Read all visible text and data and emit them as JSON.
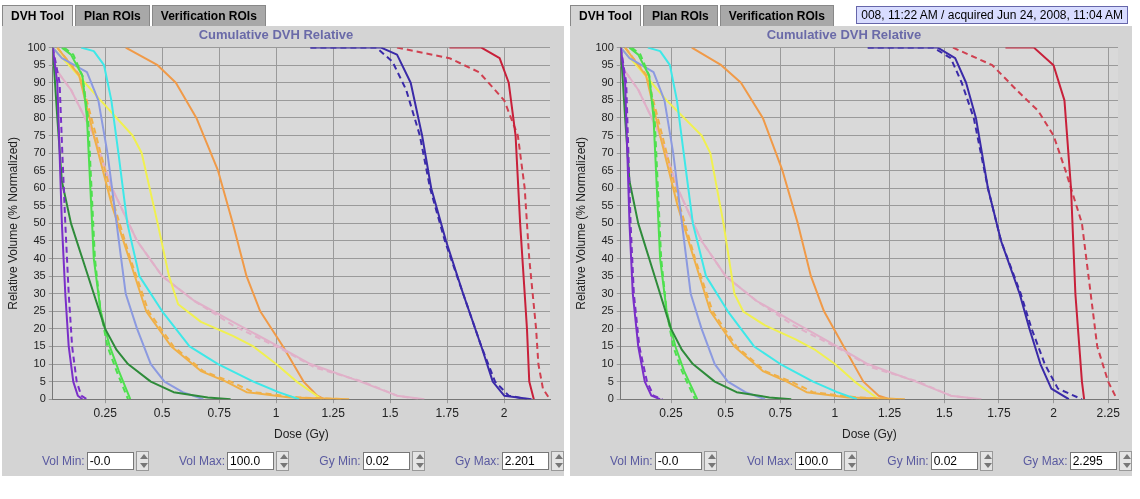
{
  "chart_data": [
    {
      "type": "line",
      "title": "Cumulative DVH Relative",
      "xlabel": "Dose (Gy)",
      "ylabel": "Relative Volume (% Normalized)",
      "xlim": [
        0.02,
        2.201
      ],
      "xticks": [
        0.25,
        0.5,
        0.75,
        1,
        1.25,
        1.5,
        1.75,
        2
      ],
      "ylim": [
        0,
        100
      ],
      "yticks": [
        0,
        5,
        10,
        15,
        20,
        25,
        30,
        35,
        40,
        45,
        50,
        55,
        60,
        65,
        70,
        75,
        80,
        85,
        90,
        95,
        100
      ],
      "grid": true,
      "legend": false,
      "marker": "none",
      "line_style": "solid",
      "annotations": [
        "DVH Tool",
        "Plan ROIs",
        "Verification ROIs",
        "Vol Min:",
        "-0.0",
        "Vol Max:",
        "100.0",
        "Gy Min:",
        "0.02",
        "Gy Max:",
        "2.201"
      ],
      "series": [
        {
          "color": "#7a2fc8",
          "x": [
            0.02,
            0.04,
            0.05,
            0.06,
            0.075,
            0.09,
            0.11,
            0.13,
            0.15
          ],
          "values": [
            100,
            90,
            70,
            50,
            30,
            15,
            5,
            1,
            0
          ]
        },
        {
          "color": "#7a2fc8",
          "line_style": "dashed",
          "x": [
            0.02,
            0.05,
            0.062,
            0.075,
            0.09,
            0.105,
            0.125,
            0.145,
            0.17
          ],
          "values": [
            100,
            90,
            70,
            50,
            30,
            15,
            5,
            1,
            0
          ]
        },
        {
          "color": "#2e8b3a",
          "x": [
            0.02,
            0.04,
            0.06,
            0.1,
            0.15,
            0.2,
            0.25,
            0.3,
            0.35,
            0.45,
            0.55,
            0.7,
            0.8
          ],
          "values": [
            100,
            80,
            62,
            50,
            40,
            30,
            20,
            14,
            10,
            5,
            2,
            0.5,
            0
          ]
        },
        {
          "color": "#4ee04e",
          "x": [
            0.06,
            0.1,
            0.15,
            0.17,
            0.185,
            0.2,
            0.23,
            0.27,
            0.31,
            0.36
          ],
          "values": [
            100,
            98,
            92,
            80,
            60,
            40,
            25,
            15,
            8,
            0
          ]
        },
        {
          "color": "#4ee04e",
          "line_style": "dashed",
          "x": [
            0.07,
            0.11,
            0.15,
            0.175,
            0.19,
            0.205,
            0.23,
            0.26,
            0.3,
            0.35
          ],
          "values": [
            100,
            98,
            92,
            80,
            60,
            40,
            25,
            15,
            8,
            0
          ]
        },
        {
          "color": "#8c9ae0",
          "x": [
            0.02,
            0.06,
            0.17,
            0.22,
            0.26,
            0.3,
            0.34,
            0.39,
            0.45,
            0.51,
            0.59,
            0.68
          ],
          "values": [
            100,
            97,
            93,
            85,
            70,
            50,
            30,
            20,
            10,
            5,
            2,
            0
          ]
        },
        {
          "color": "#3ee8e8",
          "x": [
            0.144,
            0.2,
            0.245,
            0.277,
            0.308,
            0.347,
            0.4,
            0.5,
            0.62,
            0.745,
            0.9,
            1.01,
            1.1
          ],
          "values": [
            100,
            99,
            95,
            85,
            70,
            50,
            35,
            25,
            15,
            10,
            5,
            2,
            0
          ]
        },
        {
          "color": "#f0b048",
          "x": [
            0.04,
            0.136,
            0.2,
            0.28,
            0.355,
            0.43,
            0.54,
            0.67,
            0.78,
            0.87,
            1.06,
            1.32
          ],
          "values": [
            100,
            92,
            75,
            55,
            40,
            25,
            15,
            8,
            5,
            2,
            0.5,
            0
          ]
        },
        {
          "color": "#f0b048",
          "line_style": "dashed",
          "x": [
            0.04,
            0.14,
            0.21,
            0.29,
            0.36,
            0.44,
            0.55,
            0.68,
            0.8,
            0.9,
            1.1,
            1.3
          ],
          "values": [
            100,
            92,
            75,
            55,
            40,
            25,
            15,
            8,
            5,
            2,
            0.5,
            0
          ]
        },
        {
          "color": "#f0f050",
          "x": [
            0.02,
            0.12,
            0.23,
            0.37,
            0.41,
            0.48,
            0.53,
            0.57,
            0.67,
            0.81,
            0.9,
            1.0,
            1.09,
            1.2
          ],
          "values": [
            100,
            93,
            85,
            75,
            70,
            50,
            35,
            27,
            22,
            18,
            15,
            10,
            5,
            0
          ]
        },
        {
          "color": "#e0b0c8",
          "x": [
            0.02,
            0.1,
            0.2,
            0.28,
            0.39,
            0.5,
            0.64,
            0.81,
            1.01,
            1.15,
            1.37,
            1.53,
            1.65
          ],
          "values": [
            95,
            88,
            75,
            60,
            45,
            35,
            28,
            22,
            15,
            10,
            5,
            1,
            0
          ]
        },
        {
          "color": "#e0b0c8",
          "line_style": "dashed",
          "x": [
            0.02,
            0.1,
            0.2,
            0.28,
            0.39,
            0.5,
            0.64,
            0.81,
            1.03,
            1.17,
            1.38,
            1.53,
            1.63
          ],
          "values": [
            95,
            88,
            75,
            60,
            45,
            35,
            28,
            21,
            14,
            9,
            5,
            1,
            0
          ]
        },
        {
          "color": "#f09a48",
          "x": [
            0.34,
            0.48,
            0.56,
            0.65,
            0.745,
            0.81,
            0.87,
            0.93,
            1.03,
            1.12,
            1.18,
            1.21
          ],
          "values": [
            100,
            95,
            90,
            80,
            65,
            50,
            35,
            25,
            15,
            5,
            1,
            0
          ]
        },
        {
          "color": "#3a2aa8",
          "x": [
            1.15,
            1.46,
            1.53,
            1.59,
            1.64,
            1.68,
            1.745,
            1.82,
            1.9,
            1.95,
            2.0,
            2.12
          ],
          "values": [
            100,
            100,
            98,
            90,
            75,
            60,
            45,
            30,
            15,
            5,
            1,
            0
          ]
        },
        {
          "color": "#3a2aa8",
          "line_style": "dashed",
          "x": [
            1.15,
            1.44,
            1.51,
            1.57,
            1.63,
            1.675,
            1.74,
            1.82,
            1.9,
            1.96,
            2.02,
            2.1
          ],
          "values": [
            100,
            100,
            96,
            88,
            75,
            60,
            45,
            30,
            15,
            5,
            1,
            0
          ]
        },
        {
          "color": "#c8203a",
          "x": [
            1.76,
            1.9,
            1.98,
            2.02,
            2.05,
            2.07,
            2.1,
            2.11,
            2.13
          ],
          "values": [
            100,
            100,
            97,
            90,
            75,
            50,
            20,
            5,
            0
          ]
        },
        {
          "color": "#d04050",
          "line_style": "dashed",
          "x": [
            1.53,
            1.76,
            1.89,
            2.0,
            2.06,
            2.09,
            2.11,
            2.14,
            2.15,
            2.17,
            2.2
          ],
          "values": [
            100,
            97,
            93,
            85,
            75,
            60,
            40,
            20,
            10,
            3,
            0
          ]
        }
      ]
    },
    {
      "type": "line",
      "title": "Cumulative DVH Relative",
      "xlabel": "Dose (Gy)",
      "ylabel": "Relative Volume (% Normalized)",
      "xlim": [
        0.02,
        2.295
      ],
      "xticks": [
        0.25,
        0.5,
        0.75,
        1,
        1.25,
        1.5,
        1.75,
        2,
        2.25
      ],
      "ylim": [
        0,
        100
      ],
      "yticks": [
        0,
        5,
        10,
        15,
        20,
        25,
        30,
        35,
        40,
        45,
        50,
        55,
        60,
        65,
        70,
        75,
        80,
        85,
        90,
        95,
        100
      ],
      "grid": true,
      "legend": false,
      "marker": "none",
      "line_style": "solid",
      "annotations": [
        "DVH Tool",
        "Plan ROIs",
        "Verification ROIs",
        "Vol Min:",
        "-0.0",
        "Vol Max:",
        "100.0",
        "Gy Min:",
        "0.02",
        "Gy Max:",
        "2.295",
        "008, 11:22 AM / acquired Jun 24, 2008, 11:04 AM"
      ],
      "series": [
        {
          "color": "#7a2fc8",
          "x": [
            0.02,
            0.04,
            0.05,
            0.06,
            0.075,
            0.1,
            0.13,
            0.16,
            0.2
          ],
          "values": [
            100,
            90,
            70,
            50,
            30,
            15,
            5,
            1,
            0
          ]
        },
        {
          "color": "#7a2fc8",
          "line_style": "dashed",
          "x": [
            0.02,
            0.045,
            0.055,
            0.065,
            0.08,
            0.105,
            0.14,
            0.17,
            0.21
          ],
          "values": [
            100,
            90,
            70,
            50,
            30,
            15,
            5,
            1,
            0
          ]
        },
        {
          "color": "#2e8b3a",
          "x": [
            0.02,
            0.04,
            0.06,
            0.1,
            0.15,
            0.2,
            0.25,
            0.3,
            0.35,
            0.45,
            0.55,
            0.7,
            0.8
          ],
          "values": [
            100,
            80,
            62,
            50,
            40,
            30,
            20,
            14,
            10,
            5,
            2,
            0.5,
            0
          ]
        },
        {
          "color": "#4ee04e",
          "x": [
            0.06,
            0.1,
            0.15,
            0.17,
            0.185,
            0.2,
            0.23,
            0.27,
            0.31,
            0.37
          ],
          "values": [
            100,
            98,
            92,
            80,
            60,
            40,
            25,
            15,
            8,
            0
          ]
        },
        {
          "color": "#4ee04e",
          "line_style": "dashed",
          "x": [
            0.07,
            0.11,
            0.15,
            0.175,
            0.19,
            0.205,
            0.23,
            0.26,
            0.3,
            0.36
          ],
          "values": [
            100,
            98,
            92,
            80,
            60,
            40,
            25,
            15,
            8,
            0
          ]
        },
        {
          "color": "#8c9ae0",
          "x": [
            0.02,
            0.06,
            0.17,
            0.22,
            0.26,
            0.3,
            0.34,
            0.39,
            0.45,
            0.51,
            0.59,
            0.68
          ],
          "values": [
            100,
            97,
            93,
            85,
            70,
            50,
            30,
            20,
            10,
            5,
            2,
            0
          ]
        },
        {
          "color": "#3ee8e8",
          "x": [
            0.144,
            0.2,
            0.245,
            0.277,
            0.308,
            0.35,
            0.41,
            0.51,
            0.63,
            0.75,
            0.9,
            1.01,
            1.1
          ],
          "values": [
            100,
            99,
            95,
            85,
            70,
            50,
            35,
            25,
            15,
            10,
            5,
            2,
            0
          ]
        },
        {
          "color": "#f0b048",
          "x": [
            0.04,
            0.136,
            0.2,
            0.28,
            0.355,
            0.43,
            0.54,
            0.67,
            0.78,
            0.87,
            1.06,
            1.32
          ],
          "values": [
            100,
            92,
            75,
            55,
            40,
            25,
            15,
            8,
            5,
            2,
            0.5,
            0
          ]
        },
        {
          "color": "#f0b048",
          "line_style": "dashed",
          "x": [
            0.04,
            0.14,
            0.21,
            0.29,
            0.36,
            0.44,
            0.55,
            0.68,
            0.8,
            0.9,
            1.1,
            1.3
          ],
          "values": [
            100,
            92,
            75,
            55,
            40,
            25,
            15,
            8,
            5,
            2,
            0.5,
            0
          ]
        },
        {
          "color": "#f0f050",
          "x": [
            0.02,
            0.12,
            0.23,
            0.39,
            0.43,
            0.49,
            0.54,
            0.58,
            0.68,
            0.82,
            0.91,
            1.0,
            1.09,
            1.2
          ],
          "values": [
            100,
            93,
            85,
            75,
            70,
            50,
            30,
            25,
            21,
            17,
            14,
            10,
            5,
            0
          ]
        },
        {
          "color": "#e0b0c8",
          "x": [
            0.02,
            0.1,
            0.2,
            0.28,
            0.39,
            0.5,
            0.64,
            0.81,
            1.01,
            1.15,
            1.37,
            1.53,
            1.67
          ],
          "values": [
            95,
            88,
            75,
            60,
            45,
            35,
            28,
            22,
            15,
            10,
            5,
            1,
            0
          ]
        },
        {
          "color": "#e0b0c8",
          "line_style": "dashed",
          "x": [
            0.02,
            0.1,
            0.2,
            0.28,
            0.39,
            0.5,
            0.64,
            0.81,
            1.03,
            1.17,
            1.38,
            1.53,
            1.65
          ],
          "values": [
            95,
            88,
            75,
            60,
            45,
            35,
            28,
            21,
            14,
            9,
            5,
            1,
            0
          ]
        },
        {
          "color": "#f09a48",
          "x": [
            0.345,
            0.48,
            0.57,
            0.67,
            0.76,
            0.83,
            0.89,
            0.95,
            1.04,
            1.13,
            1.2,
            1.25
          ],
          "values": [
            100,
            95,
            90,
            80,
            65,
            50,
            35,
            25,
            15,
            5,
            1,
            0
          ]
        },
        {
          "color": "#3a2aa8",
          "x": [
            1.15,
            1.47,
            1.55,
            1.6,
            1.645,
            1.7,
            1.76,
            1.845,
            1.89,
            1.94,
            1.99,
            2.07
          ],
          "values": [
            100,
            100,
            97,
            90,
            80,
            60,
            45,
            30,
            20,
            10,
            3,
            0
          ]
        },
        {
          "color": "#3a2aa8",
          "line_style": "dashed",
          "x": [
            1.15,
            1.45,
            1.53,
            1.58,
            1.635,
            1.7,
            1.76,
            1.85,
            1.9,
            1.96,
            2.02,
            2.13
          ],
          "values": [
            100,
            100,
            97,
            90,
            80,
            60,
            45,
            30,
            20,
            10,
            3,
            0
          ]
        },
        {
          "color": "#c8203a",
          "x": [
            1.78,
            1.91,
            2.0,
            2.05,
            2.08,
            2.1,
            2.13,
            2.14
          ],
          "values": [
            100,
            100,
            95,
            85,
            60,
            30,
            5,
            0
          ]
        },
        {
          "color": "#d04050",
          "line_style": "dashed",
          "x": [
            1.54,
            1.72,
            1.83,
            1.93,
            2.0,
            2.055,
            2.13,
            2.17,
            2.2,
            2.25,
            2.29
          ],
          "values": [
            100,
            95,
            88,
            82,
            75,
            65,
            50,
            30,
            15,
            5,
            0
          ]
        }
      ]
    }
  ]
}
